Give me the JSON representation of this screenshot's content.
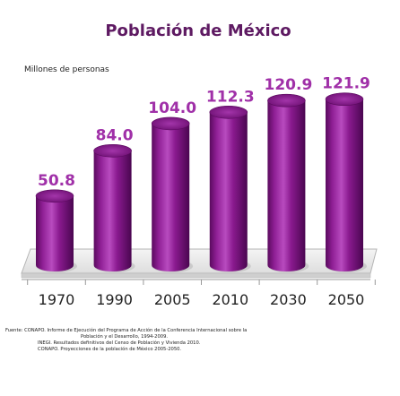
{
  "chart_data": {
    "type": "bar",
    "title": "Población de México",
    "ylabel": "Millones de personas",
    "xlabel": "",
    "categories": [
      "1970",
      "1990",
      "2005",
      "2010",
      "2030",
      "2050"
    ],
    "values": [
      50.8,
      84.0,
      104.0,
      112.3,
      120.9,
      121.9
    ],
    "value_labels": [
      "50.8",
      "84.0",
      "104.0",
      "112.3",
      "120.9",
      "121.9"
    ],
    "ylim": [
      0,
      140
    ],
    "grid": false,
    "legend": "none",
    "bar_style": "3d-cylinder",
    "bar_color": "#8a1a8f",
    "label_color": "#a030a8"
  },
  "source_lines": [
    "Fuente: CONAPO. Informe de Ejecución del Programa de Acción de la Conferencia Internacional sobre la",
    "Población y el Desarrollo, 1994-2009.",
    "INEGI. Resultados definitivos del Censo de Población y Vivienda 2010.",
    "CONAPO. Proyecciones de la población de México 2005-2050."
  ]
}
